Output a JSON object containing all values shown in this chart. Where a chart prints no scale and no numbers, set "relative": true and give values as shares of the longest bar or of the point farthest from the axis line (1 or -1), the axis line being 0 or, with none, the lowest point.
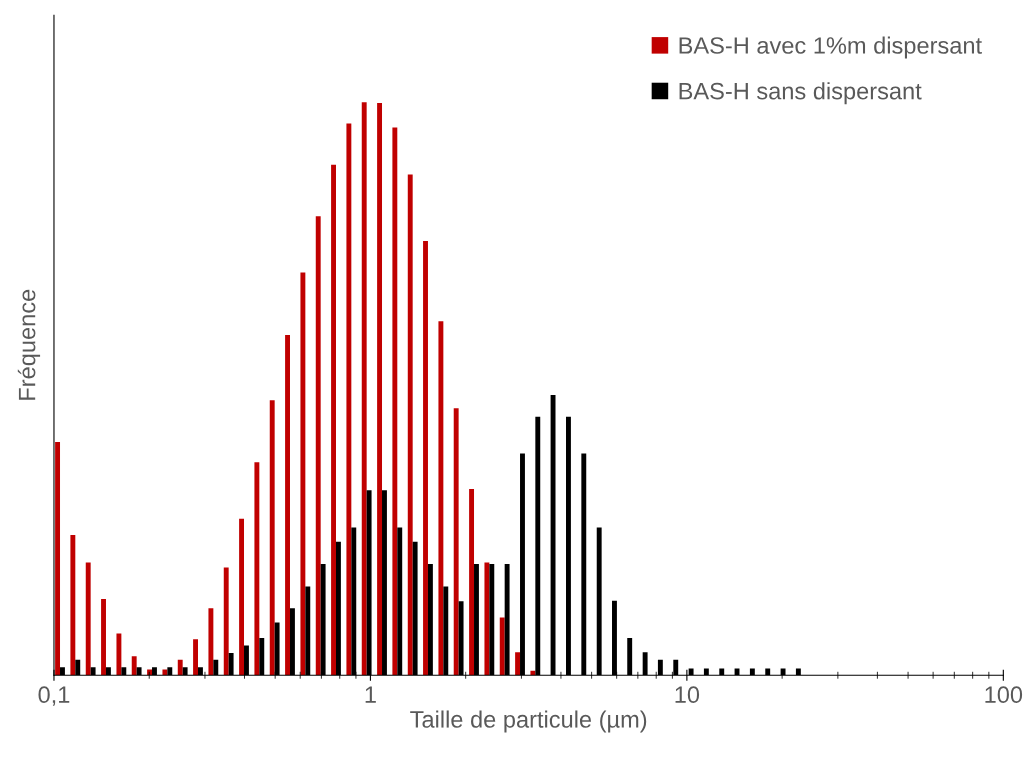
{
  "chart_data": {
    "type": "bar",
    "relative": true,
    "xlabel": "Taille de particule (µm)",
    "ylabel": "Fréquence",
    "log": "x",
    "xlim": [
      0.1,
      100
    ],
    "xticks": [
      {
        "value": 0.1,
        "label": "0,1"
      },
      1,
      10,
      100
    ],
    "x": [
      0.1045,
      0.1168,
      0.1306,
      0.146,
      0.1633,
      0.1825,
      0.2041,
      0.2282,
      0.2551,
      0.2852,
      0.3189,
      0.3565,
      0.3986,
      0.4456,
      0.4982,
      0.557,
      0.6228,
      0.6963,
      0.7784,
      0.8703,
      0.973,
      1.088,
      1.216,
      1.36,
      1.52,
      1.7,
      1.9,
      2.125,
      2.376,
      2.656,
      2.97,
      3.32,
      3.71,
      4.15,
      4.64,
      5.19,
      5.8,
      6.48,
      7.25,
      8.1,
      9.06,
      10.13,
      11.32,
      12.66,
      14.15,
      15.82,
      17.69,
      19.78,
      22.11
    ],
    "series": [
      {
        "name": "BAS-H avec 1%m dispersant",
        "color": "#c00000",
        "values": [
          0.407,
          0.245,
          0.197,
          0.133,
          0.073,
          0.033,
          0.01,
          0.01,
          0.027,
          0.063,
          0.117,
          0.188,
          0.273,
          0.372,
          0.48,
          0.594,
          0.703,
          0.801,
          0.891,
          0.963,
          1.0,
          0.999,
          0.956,
          0.874,
          0.758,
          0.618,
          0.466,
          0.325,
          0.197,
          0.101,
          0.04,
          0.008,
          0,
          0,
          0,
          0,
          0,
          0,
          0,
          0,
          0,
          0,
          0,
          0,
          0,
          0,
          0,
          0,
          0
        ]
      },
      {
        "name": "BAS-H sans dispersant",
        "color": "#000000",
        "values": [
          0.014,
          0.027,
          0.014,
          0.014,
          0.014,
          0.014,
          0.014,
          0.014,
          0.014,
          0.014,
          0.027,
          0.039,
          0.052,
          0.065,
          0.092,
          0.117,
          0.155,
          0.194,
          0.233,
          0.258,
          0.323,
          0.323,
          0.258,
          0.233,
          0.194,
          0.155,
          0.129,
          0.194,
          0.194,
          0.194,
          0.387,
          0.451,
          0.489,
          0.451,
          0.387,
          0.258,
          0.13,
          0.065,
          0.04,
          0.027,
          0.027,
          0.012,
          0.012,
          0.012,
          0.012,
          0.012,
          0.012,
          0.012,
          0.012
        ]
      }
    ],
    "legend": "top right",
    "grid": false
  }
}
